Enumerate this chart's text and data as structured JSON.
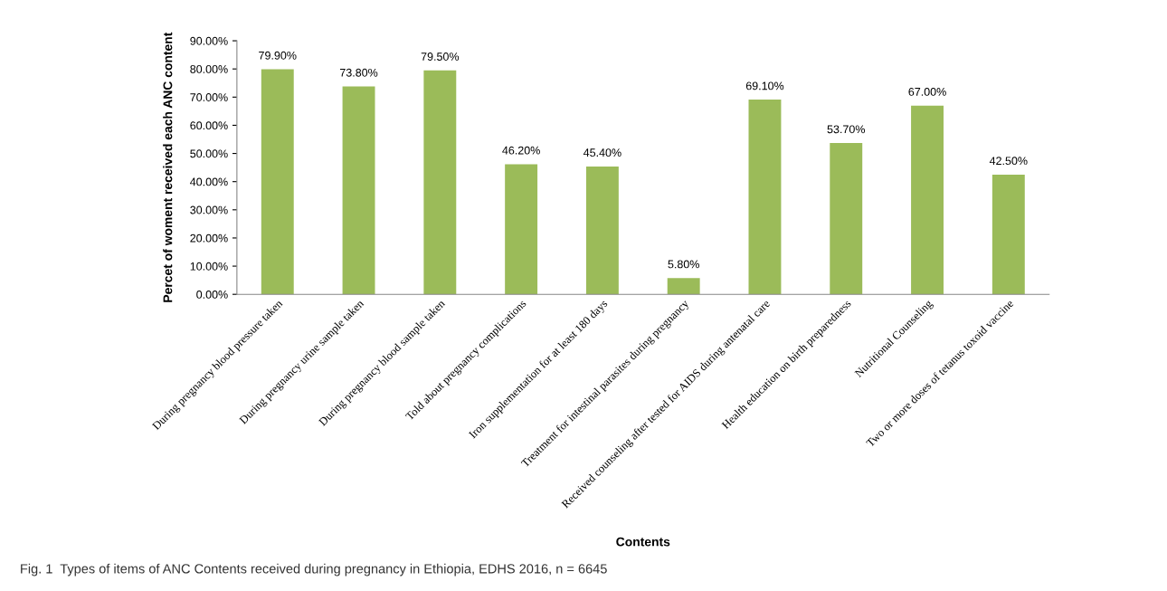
{
  "chart_data": {
    "type": "bar",
    "categories": [
      "During pregnancy blood pressure taken",
      "During pregnancy urine sample taken",
      "During pregnancy blood sample taken",
      "Told about pregnancy complications",
      "Iron supplementation for at least 180 days",
      "Treatment for intestinal parasites during pregnancy",
      "Received counseling after tested for AIDS during antenatal care",
      "Health education on birth preparedness",
      "Nutritional Counseling",
      "Two or more doses of tetanus toxoid vaccine"
    ],
    "values": [
      79.9,
      73.8,
      79.5,
      46.2,
      45.4,
      5.8,
      69.1,
      53.7,
      67.0,
      42.5
    ],
    "value_labels": [
      "79.90%",
      "73.80%",
      "79.50%",
      "46.20%",
      "45.40%",
      "5.80%",
      "69.10%",
      "53.70%",
      "67.00%",
      "42.50%"
    ],
    "color": "#9bbb59",
    "xlabel": "Contents",
    "ylabel": "Percet of woment received each ANC content",
    "ylim": [
      0,
      90
    ],
    "yticks": [
      {
        "value": 0,
        "label": "0.00%"
      },
      {
        "value": 10,
        "label": "10.00%"
      },
      {
        "value": 20,
        "label": "20.00%"
      },
      {
        "value": 30,
        "label": "30.00%"
      },
      {
        "value": 40,
        "label": "40.00%"
      },
      {
        "value": 50,
        "label": "50.00%"
      },
      {
        "value": 60,
        "label": "60.00%"
      },
      {
        "value": 70,
        "label": "70.00%"
      },
      {
        "value": 80,
        "label": "80.00%"
      },
      {
        "value": 90,
        "label": "90.00%"
      }
    ],
    "grid": false,
    "legend": false,
    "annotations": [
      "Fig. 1  Types of items of ANC Contents received during pregnancy in Ethiopia, EDHS 2016, n = 6645"
    ]
  }
}
